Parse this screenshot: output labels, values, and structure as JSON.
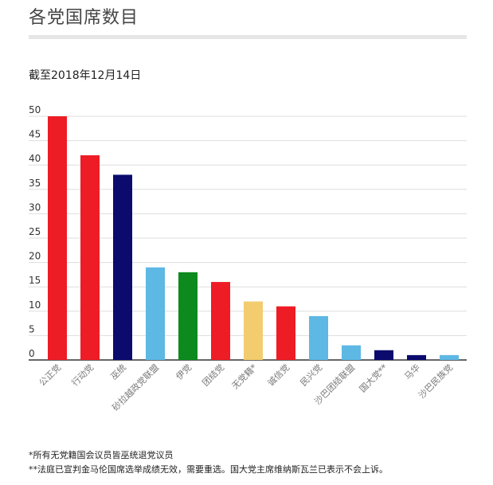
{
  "header": {
    "title": "各党国席数目",
    "subtitle": "截至2018年12月14日"
  },
  "notes": [
    "*所有无党籍国会议员皆巫统退党议员",
    "**法庭已宣判金马伦国席选举成绩无效，需要重选。国大党主席维纳斯瓦兰已表示不会上诉。"
  ],
  "colors": {
    "red": "#ee1c25",
    "navy": "#0b0b6e",
    "light_blue": "#5db8e4",
    "green": "#0c8a1e",
    "gold": "#f2cc6e"
  },
  "chart_data": {
    "type": "bar",
    "categories": [
      "公正党",
      "行动党",
      "巫统",
      "砂拉越政党联盟",
      "伊党",
      "团结党",
      "无党籍*",
      "诚信党",
      "民兴党",
      "沙巴团结联盟",
      "国大党**",
      "马华",
      "沙巴民族党"
    ],
    "values": [
      50,
      42,
      38,
      19,
      18,
      16,
      12,
      11,
      9,
      3,
      2,
      1,
      1
    ],
    "bar_colors": [
      "#ee1c25",
      "#ee1c25",
      "#0b0b6e",
      "#5db8e4",
      "#0c8a1e",
      "#ee1c25",
      "#f2cc6e",
      "#ee1c25",
      "#5db8e4",
      "#5db8e4",
      "#0b0b6e",
      "#0b0b6e",
      "#5db8e4"
    ],
    "yticks": [
      0,
      5,
      10,
      15,
      20,
      25,
      30,
      35,
      40,
      45,
      50
    ],
    "ylim": [
      0,
      50
    ],
    "grid": true,
    "legend": "none"
  }
}
